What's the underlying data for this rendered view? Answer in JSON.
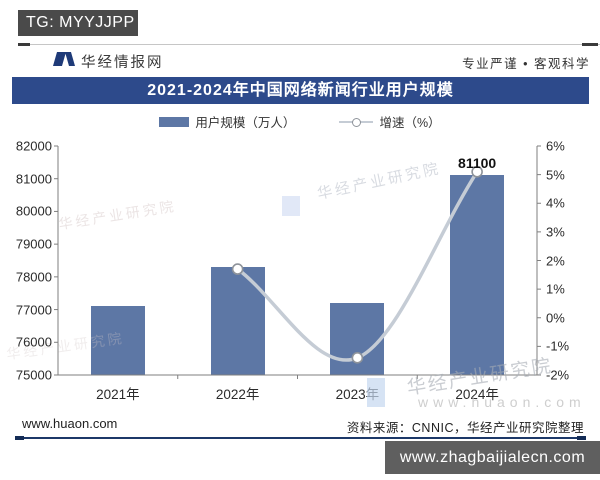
{
  "overlay": {
    "tg_badge": "TG: MYYJJPP",
    "bottom_bar": "www.zhagbaijialecn.com"
  },
  "header": {
    "brand": "华经情报网",
    "slogan": "专业严谨 • 客观科学"
  },
  "footer": {
    "site": "www.huaon.com",
    "source": "资料来源：CNNIC，华经产业研究院整理"
  },
  "watermarks": {
    "brand_text": "华经产业研究院",
    "url_text": "www.huaon.com"
  },
  "colors": {
    "title_bar": "#2d4a8b",
    "bar": "#5d77a5",
    "line": "#c5ccd5",
    "marker_fill": "#ffffff",
    "marker_stroke": "#8e939a",
    "axis": "#7f7f7f",
    "overlay_bar": "#4a4a4a",
    "bottom_bar": "#5f5f5f",
    "footer_rule": "#1c3868",
    "brand_logo": "#1e3a78"
  },
  "chart_data": {
    "type": "bar",
    "combo": "bar+line",
    "title": "2021-2024年中国网络新闻行业用户规模",
    "categories": [
      "2021年",
      "2022年",
      "2023年",
      "2024年"
    ],
    "series": [
      {
        "name": "用户规模（万人）",
        "type": "bar",
        "axis": "left",
        "values": [
          77100,
          78300,
          77200,
          81100
        ],
        "data_labels": [
          "",
          "",
          "",
          "81100"
        ]
      },
      {
        "name": "增速（%）",
        "type": "line",
        "axis": "right",
        "values": [
          null,
          1.7,
          -1.4,
          5.1
        ]
      }
    ],
    "left_axis": {
      "min": 75000,
      "max": 82000,
      "ticks": [
        "82000",
        "81000",
        "80000",
        "79000",
        "78000",
        "77000",
        "76000",
        "75000"
      ]
    },
    "right_axis": {
      "min": -2,
      "max": 6,
      "ticks": [
        "6%",
        "5%",
        "4%",
        "3%",
        "2%",
        "1%",
        "0%",
        "-1%",
        "-2%"
      ]
    },
    "grid": false,
    "legend_position": "top"
  }
}
